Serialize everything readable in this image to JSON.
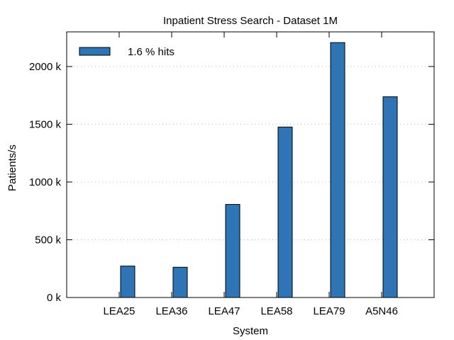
{
  "chart_data": {
    "type": "bar",
    "title": "Inpatient Stress Search - Dataset 1M",
    "xlabel": "System",
    "ylabel": "Patients/s",
    "categories": [
      "LEA25",
      "LEA36",
      "LEA47",
      "LEA58",
      "LEA79",
      "A5N46"
    ],
    "series": [
      {
        "name": "1.6 % hits",
        "values": [
          272,
          262,
          806,
          1476,
          2207,
          1738
        ],
        "color": "#2f74b5"
      }
    ],
    "ylim": [
      0,
      2300
    ],
    "yticks": [
      0,
      500,
      1000,
      1500,
      2000
    ],
    "ytick_labels": [
      "0 k",
      "500 k",
      "1000 k",
      "1500 k",
      "2000 k"
    ],
    "grid": true,
    "legend_position": "top-left"
  }
}
